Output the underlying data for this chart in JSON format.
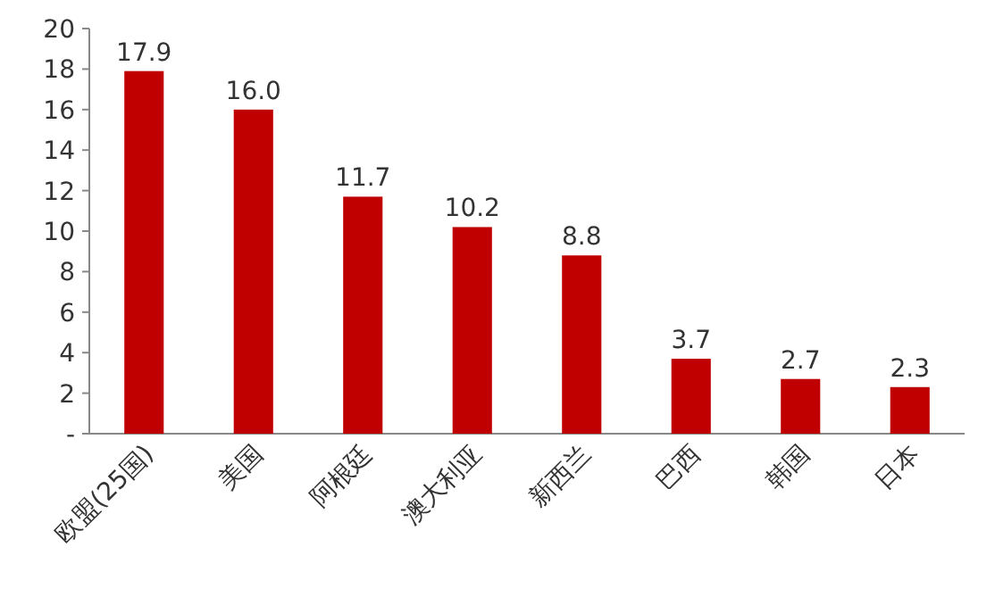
{
  "chart_data": {
    "type": "bar",
    "categories": [
      "欧盟(25国)",
      "美国",
      "阿根廷",
      "澳大利亚",
      "新西兰",
      "巴西",
      "韩国",
      "日本"
    ],
    "values": [
      17.9,
      16.0,
      11.7,
      10.2,
      8.8,
      3.7,
      2.7,
      2.3
    ],
    "value_labels": [
      "17.9",
      "16.0",
      "11.7",
      "10.2",
      "8.8",
      "3.7",
      "2.7",
      "2.3"
    ],
    "color": "#c00000",
    "ylim": [
      0,
      20
    ],
    "yticks": [
      {
        "value": 0,
        "label": "-"
      },
      2,
      4,
      6,
      8,
      10,
      12,
      14,
      16,
      18,
      20
    ]
  }
}
